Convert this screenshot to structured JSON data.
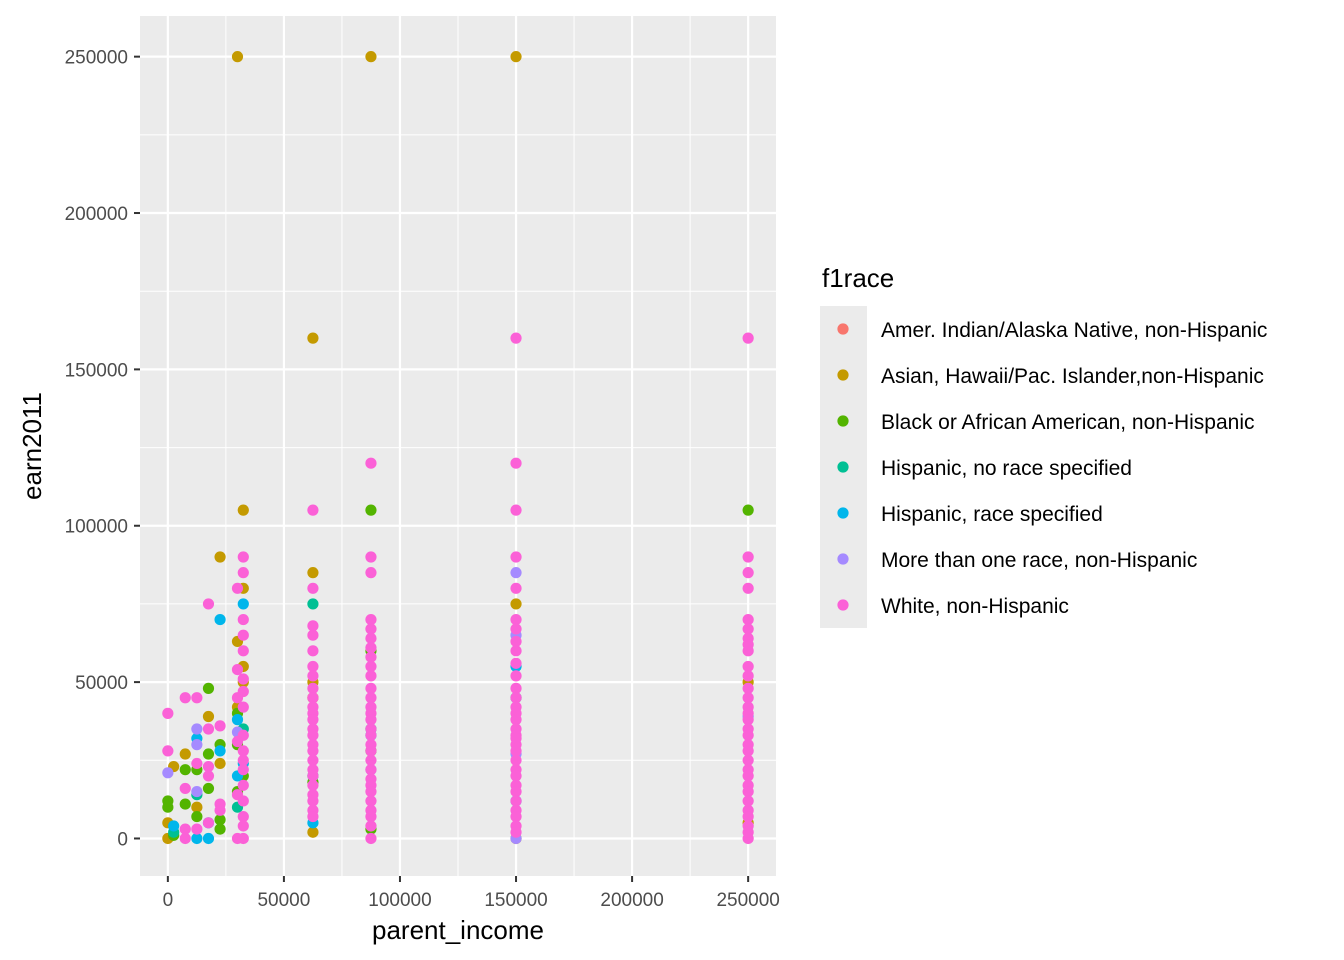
{
  "chart_data": {
    "type": "scatter",
    "xlabel": "parent_income",
    "ylabel": "earn2011",
    "xlim": [
      -12000,
      262000
    ],
    "ylim": [
      -12000,
      263000
    ],
    "x_ticks": [
      0,
      50000,
      100000,
      150000,
      200000,
      250000
    ],
    "y_ticks": [
      0,
      50000,
      100000,
      150000,
      200000,
      250000
    ],
    "x_tick_labels": [
      "0",
      "50000",
      "100000",
      "150000",
      "200000",
      "250000"
    ],
    "y_tick_labels": [
      "0",
      "50000",
      "100000",
      "150000",
      "200000",
      "250000"
    ],
    "grid": true,
    "legend": {
      "title": "f1race",
      "placement": "right"
    },
    "series": [
      {
        "name": "Amer. Indian/Alaska Native, non-Hispanic",
        "color": "#F8766D",
        "points": []
      },
      {
        "name": "Asian, Hawaii/Pac. Islander,non-Hispanic",
        "color": "#C49A00",
        "points": [
          [
            30000,
            250000
          ],
          [
            87500,
            250000
          ],
          [
            150000,
            250000
          ],
          [
            62500,
            160000
          ],
          [
            32500,
            105000
          ],
          [
            22500,
            90000
          ],
          [
            62500,
            85000
          ],
          [
            32500,
            80000
          ],
          [
            150000,
            75000
          ],
          [
            30000,
            63000
          ],
          [
            250000,
            50000
          ],
          [
            62500,
            50000
          ],
          [
            32500,
            50000
          ],
          [
            17500,
            39000
          ],
          [
            7500,
            27000
          ],
          [
            2500,
            23000
          ],
          [
            22500,
            24000
          ],
          [
            12500,
            10000
          ],
          [
            0,
            5000
          ],
          [
            0,
            0
          ],
          [
            62500,
            2000
          ],
          [
            150000,
            0
          ],
          [
            250000,
            5000
          ],
          [
            32500,
            55000
          ],
          [
            62500,
            45000
          ],
          [
            30000,
            42000
          ]
        ]
      },
      {
        "name": "Black or African American, non-Hispanic",
        "color": "#53B400",
        "points": [
          [
            250000,
            105000
          ],
          [
            87500,
            105000
          ],
          [
            87500,
            60000
          ],
          [
            87500,
            3000
          ],
          [
            17500,
            48000
          ],
          [
            0,
            10000
          ],
          [
            0,
            12000
          ],
          [
            7500,
            22000
          ],
          [
            7500,
            11000
          ],
          [
            12500,
            7000
          ],
          [
            22500,
            30000
          ],
          [
            22500,
            3000
          ],
          [
            22500,
            6000
          ],
          [
            30000,
            40000
          ],
          [
            30000,
            30000
          ],
          [
            32500,
            20000
          ],
          [
            62500,
            18000
          ],
          [
            87500,
            28000
          ],
          [
            17500,
            16000
          ],
          [
            12500,
            22000
          ],
          [
            2500,
            1000
          ],
          [
            17500,
            27000
          ],
          [
            30000,
            15000
          ]
        ]
      },
      {
        "name": "Hispanic, no race specified",
        "color": "#00C094",
        "points": [
          [
            62500,
            75000
          ],
          [
            87500,
            35000
          ],
          [
            150000,
            45000
          ],
          [
            30000,
            10000
          ],
          [
            12500,
            14000
          ],
          [
            62500,
            20000
          ],
          [
            2500,
            2000
          ],
          [
            32500,
            35000
          ]
        ]
      },
      {
        "name": "Hispanic, race specified",
        "color": "#00B6EB",
        "points": [
          [
            22500,
            70000
          ],
          [
            32500,
            75000
          ],
          [
            30000,
            38000
          ],
          [
            22500,
            28000
          ],
          [
            12500,
            32000
          ],
          [
            2500,
            4000
          ],
          [
            12500,
            0
          ],
          [
            17500,
            0
          ],
          [
            150000,
            55000
          ],
          [
            150000,
            12000
          ],
          [
            62500,
            5000
          ],
          [
            30000,
            20000
          ],
          [
            17500,
            5000
          ],
          [
            32500,
            24000
          ],
          [
            87500,
            33000
          ]
        ]
      },
      {
        "name": "More than one race, non-Hispanic",
        "color": "#A58AFF",
        "points": [
          [
            150000,
            85000
          ],
          [
            150000,
            65000
          ],
          [
            0,
            21000
          ],
          [
            12500,
            30000
          ],
          [
            12500,
            35000
          ],
          [
            30000,
            34000
          ],
          [
            250000,
            39000
          ],
          [
            150000,
            27000
          ],
          [
            150000,
            0
          ],
          [
            12500,
            15000
          ],
          [
            87500,
            22000
          ]
        ]
      },
      {
        "name": "White, non-Hispanic",
        "color": "#FB61D7",
        "points": [
          [
            150000,
            160000
          ],
          [
            250000,
            160000
          ],
          [
            87500,
            120000
          ],
          [
            150000,
            120000
          ],
          [
            62500,
            105000
          ],
          [
            150000,
            105000
          ],
          [
            32500,
            90000
          ],
          [
            87500,
            90000
          ],
          [
            150000,
            90000
          ],
          [
            250000,
            90000
          ],
          [
            32500,
            85000
          ],
          [
            87500,
            85000
          ],
          [
            250000,
            85000
          ],
          [
            30000,
            80000
          ],
          [
            62500,
            80000
          ],
          [
            150000,
            80000
          ],
          [
            250000,
            80000
          ],
          [
            17500,
            75000
          ],
          [
            32500,
            70000
          ],
          [
            87500,
            70000
          ],
          [
            150000,
            70000
          ],
          [
            250000,
            70000
          ],
          [
            62500,
            68000
          ],
          [
            87500,
            67000
          ],
          [
            250000,
            67000
          ],
          [
            150000,
            67000
          ],
          [
            32500,
            65000
          ],
          [
            62500,
            65000
          ],
          [
            87500,
            64000
          ],
          [
            150000,
            63000
          ],
          [
            250000,
            64000
          ],
          [
            32500,
            60000
          ],
          [
            62500,
            60000
          ],
          [
            87500,
            58000
          ],
          [
            150000,
            60000
          ],
          [
            250000,
            60000
          ],
          [
            30000,
            54000
          ],
          [
            62500,
            55000
          ],
          [
            87500,
            55000
          ],
          [
            150000,
            56000
          ],
          [
            250000,
            55000
          ],
          [
            62500,
            52000
          ],
          [
            87500,
            52000
          ],
          [
            150000,
            52000
          ],
          [
            250000,
            52000
          ],
          [
            32500,
            47000
          ],
          [
            62500,
            48000
          ],
          [
            87500,
            48000
          ],
          [
            150000,
            48000
          ],
          [
            250000,
            48000
          ],
          [
            7500,
            45000
          ],
          [
            12500,
            45000
          ],
          [
            30000,
            45000
          ],
          [
            62500,
            45000
          ],
          [
            87500,
            45000
          ],
          [
            150000,
            45000
          ],
          [
            250000,
            45000
          ],
          [
            0,
            40000
          ],
          [
            32500,
            42000
          ],
          [
            62500,
            42000
          ],
          [
            87500,
            42000
          ],
          [
            150000,
            42000
          ],
          [
            250000,
            42000
          ],
          [
            62500,
            40000
          ],
          [
            87500,
            40000
          ],
          [
            150000,
            40000
          ],
          [
            250000,
            40000
          ],
          [
            62500,
            38000
          ],
          [
            87500,
            38000
          ],
          [
            150000,
            38000
          ],
          [
            250000,
            38000
          ],
          [
            17500,
            35000
          ],
          [
            22500,
            36000
          ],
          [
            62500,
            35000
          ],
          [
            87500,
            35000
          ],
          [
            150000,
            35000
          ],
          [
            250000,
            35000
          ],
          [
            32500,
            33000
          ],
          [
            62500,
            33000
          ],
          [
            87500,
            33000
          ],
          [
            150000,
            33000
          ],
          [
            250000,
            33000
          ],
          [
            30000,
            31000
          ],
          [
            62500,
            30000
          ],
          [
            87500,
            30000
          ],
          [
            150000,
            30000
          ],
          [
            250000,
            30000
          ],
          [
            0,
            28000
          ],
          [
            32500,
            28000
          ],
          [
            62500,
            28000
          ],
          [
            87500,
            28000
          ],
          [
            150000,
            28000
          ],
          [
            250000,
            28000
          ],
          [
            12500,
            24000
          ],
          [
            17500,
            23000
          ],
          [
            32500,
            25000
          ],
          [
            62500,
            25000
          ],
          [
            87500,
            25000
          ],
          [
            150000,
            25000
          ],
          [
            250000,
            25000
          ],
          [
            32500,
            22000
          ],
          [
            62500,
            22000
          ],
          [
            87500,
            22000
          ],
          [
            150000,
            22000
          ],
          [
            250000,
            22000
          ],
          [
            17500,
            20000
          ],
          [
            62500,
            20000
          ],
          [
            87500,
            19000
          ],
          [
            150000,
            20000
          ],
          [
            250000,
            20000
          ],
          [
            7500,
            16000
          ],
          [
            32500,
            17000
          ],
          [
            62500,
            17000
          ],
          [
            87500,
            17000
          ],
          [
            150000,
            17000
          ],
          [
            250000,
            17000
          ],
          [
            30000,
            14000
          ],
          [
            62500,
            14000
          ],
          [
            87500,
            15000
          ],
          [
            150000,
            15000
          ],
          [
            250000,
            15000
          ],
          [
            22500,
            11000
          ],
          [
            32500,
            12000
          ],
          [
            62500,
            12000
          ],
          [
            87500,
            12000
          ],
          [
            150000,
            12000
          ],
          [
            250000,
            12000
          ],
          [
            22500,
            9000
          ],
          [
            62500,
            9000
          ],
          [
            87500,
            9000
          ],
          [
            150000,
            9000
          ],
          [
            250000,
            9000
          ],
          [
            17500,
            5000
          ],
          [
            32500,
            7000
          ],
          [
            62500,
            7000
          ],
          [
            87500,
            7000
          ],
          [
            150000,
            7000
          ],
          [
            250000,
            7000
          ],
          [
            7500,
            3000
          ],
          [
            12500,
            3000
          ],
          [
            32500,
            4000
          ],
          [
            87500,
            4000
          ],
          [
            150000,
            4000
          ],
          [
            250000,
            4000
          ],
          [
            7500,
            0
          ],
          [
            30000,
            0
          ],
          [
            32500,
            0
          ],
          [
            87500,
            0
          ],
          [
            150000,
            2000
          ],
          [
            250000,
            0
          ],
          [
            250000,
            2000
          ],
          [
            150000,
            32000
          ],
          [
            87500,
            61000
          ],
          [
            250000,
            62000
          ],
          [
            32500,
            51000
          ]
        ]
      }
    ]
  }
}
